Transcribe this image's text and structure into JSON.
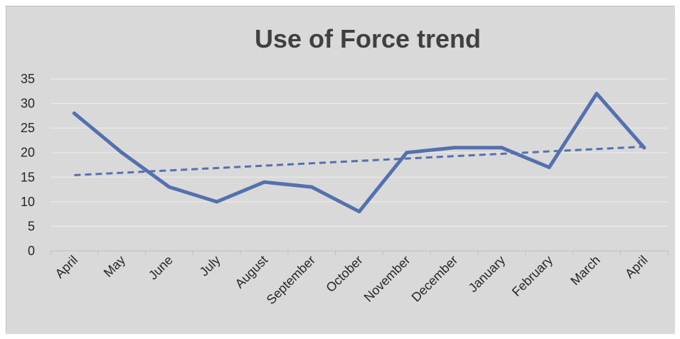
{
  "chart_data": {
    "type": "line",
    "title": "Use of Force trend",
    "xlabel": "",
    "ylabel": "",
    "categories": [
      "April",
      "May",
      "June",
      "July",
      "August",
      "September",
      "October",
      "November",
      "December",
      "January",
      "February",
      "March",
      "April"
    ],
    "series": [
      {
        "values": [
          28,
          20,
          13,
          10,
          14,
          13,
          8,
          20,
          21,
          21,
          17,
          32,
          21
        ],
        "color": "#5470AE",
        "style": "solid"
      }
    ],
    "trendline": {
      "type": "linear",
      "color": "#5470AE",
      "style": "dashed"
    },
    "ylim": [
      0,
      35
    ],
    "yticks": [
      0,
      5,
      10,
      15,
      20,
      25,
      30,
      35
    ],
    "grid": true,
    "legend": "none",
    "colors": {
      "background": "#D9D9D9",
      "grid": "#EEEEEE",
      "axis": "#BFBFBF",
      "border": "#BDBDBD"
    }
  }
}
